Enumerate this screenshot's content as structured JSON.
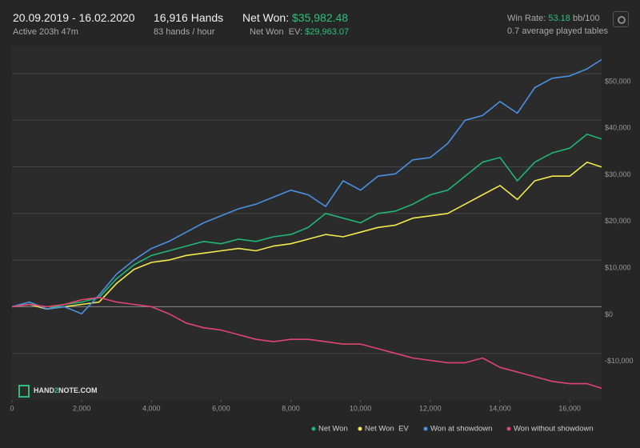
{
  "header": {
    "dates": "20.09.2019 - 16.02.2020",
    "active": "Active 203h 47m",
    "hands": "16,916 Hands",
    "rate": "83 hands / hour",
    "net_won_label": "Net Won:",
    "net_won": "$35,982.48",
    "net_won_ev_label": "Net Won  EV:",
    "net_won_ev": "$29,963.07",
    "win_rate_label": "Win Rate:",
    "win_rate": "53.18",
    "win_rate_unit": "bb/100",
    "tables": "0.7 average played tables"
  },
  "logo": [
    "HAND",
    "2",
    "NOTE.COM"
  ],
  "chart_data": {
    "type": "line",
    "x": [
      0,
      500,
      1000,
      1500,
      2000,
      2500,
      3000,
      3500,
      4000,
      4500,
      5000,
      5500,
      6000,
      6500,
      7000,
      7500,
      8000,
      8500,
      9000,
      9500,
      10000,
      10500,
      11000,
      11500,
      12000,
      12500,
      13000,
      13500,
      14000,
      14500,
      15000,
      15500,
      16000,
      16500,
      16916
    ],
    "series": [
      {
        "name": "Net Won",
        "color": "#22b573",
        "values": [
          0,
          1000,
          -500,
          500,
          1000,
          2000,
          6000,
          9000,
          11000,
          12000,
          13000,
          14000,
          13500,
          14500,
          14000,
          15000,
          15500,
          17000,
          20000,
          19000,
          18000,
          20000,
          20500,
          22000,
          24000,
          25000,
          28000,
          31000,
          32000,
          27000,
          31000,
          33000,
          34000,
          37000,
          35982
        ]
      },
      {
        "name": "Net Won  EV",
        "color": "#f2e94e",
        "values": [
          0,
          500,
          -500,
          0,
          500,
          1000,
          5000,
          8000,
          9500,
          10000,
          11000,
          11500,
          12000,
          12500,
          12000,
          13000,
          13500,
          14500,
          15500,
          15000,
          16000,
          17000,
          17500,
          19000,
          19500,
          20000,
          22000,
          24000,
          26000,
          23000,
          27000,
          28000,
          28000,
          31000,
          29963
        ]
      },
      {
        "name": "Won at showdown",
        "color": "#4a90e2",
        "values": [
          0,
          1000,
          -500,
          0,
          -1500,
          2500,
          7000,
          10000,
          12500,
          14000,
          16000,
          18000,
          19500,
          21000,
          22000,
          23500,
          25000,
          24000,
          21500,
          27000,
          25000,
          28000,
          28500,
          31500,
          32000,
          35000,
          40000,
          41000,
          44000,
          41500,
          47000,
          49000,
          49500,
          51000,
          53000
        ]
      },
      {
        "name": "Won without showdown",
        "color": "#e0456f",
        "values": [
          0,
          500,
          0,
          500,
          1500,
          2000,
          1000,
          500,
          0,
          -1500,
          -3500,
          -4500,
          -5000,
          -6000,
          -7000,
          -7500,
          -7000,
          -7000,
          -7500,
          -8000,
          -8000,
          -9000,
          -10000,
          -11000,
          -11500,
          -12000,
          -12000,
          -11000,
          -13000,
          -14000,
          -15000,
          -16000,
          -16500,
          -16500,
          -17500
        ]
      }
    ],
    "xlim": [
      0,
      16916
    ],
    "ylim": [
      -20000,
      56000
    ],
    "xticks": [
      0,
      {
        "value": 2000,
        "label": "2,000"
      },
      {
        "value": 4000,
        "label": "4,000"
      },
      {
        "value": 6000,
        "label": "6,000"
      },
      {
        "value": 8000,
        "label": "8,000"
      },
      {
        "value": 10000,
        "label": "10,000"
      },
      {
        "value": 12000,
        "label": "12,000"
      },
      {
        "value": 14000,
        "label": "14,000"
      },
      {
        "value": 16000,
        "label": "16,000"
      }
    ],
    "yticks": [
      {
        "value": -10000,
        "label": "-$10,000"
      },
      {
        "value": 0,
        "label": "$0"
      },
      {
        "value": 10000,
        "label": "$10,000"
      },
      {
        "value": 20000,
        "label": "$20,000"
      },
      {
        "value": 30000,
        "label": "$30,000"
      },
      {
        "value": 40000,
        "label": "$40,000"
      },
      {
        "value": 50000,
        "label": "$50,000"
      }
    ],
    "grid": true
  }
}
